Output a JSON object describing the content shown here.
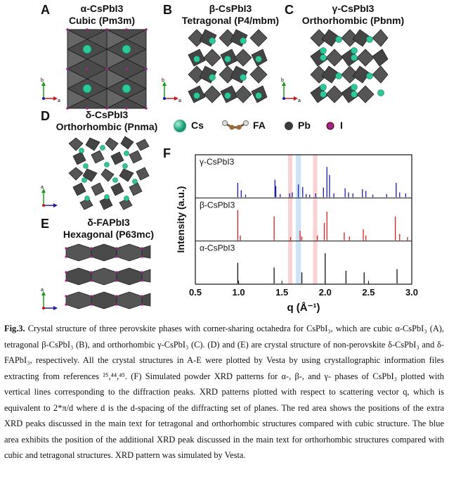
{
  "panels": {
    "A": {
      "letter": "A",
      "formula": "α-CsPbI3",
      "phase": "Cubic (Pm3m)"
    },
    "B": {
      "letter": "B",
      "formula": "β-CsPbI3",
      "phase": "Tetragonal (P4/mbm)"
    },
    "C": {
      "letter": "C",
      "formula": "γ-CsPbI3",
      "phase": "Orthorhombic (Pbnm)"
    },
    "D": {
      "letter": "D",
      "formula": "δ-CsPbI3",
      "phase": "Orthorhombic (Pnma)"
    },
    "E": {
      "letter": "E",
      "formula": "δ-FAPbI3",
      "phase": "Hexagonal (P63mc)"
    },
    "F": {
      "letter": "F"
    }
  },
  "legend": [
    {
      "label": "Cs",
      "color": "#2ec79a",
      "icon": "cs-atom-icon"
    },
    {
      "label": "FA",
      "color": "#9a6a3a",
      "icon": "fa-molecule-icon"
    },
    {
      "label": "Pb",
      "color": "#3a3a3a",
      "icon": "pb-atom-icon"
    },
    {
      "label": "I",
      "color": "#a0228c",
      "icon": "i-atom-icon"
    }
  ],
  "axis_labels": {
    "b": "b",
    "a": "a"
  },
  "chart_data": {
    "type": "bar",
    "xlabel": "q (Å⁻¹)",
    "ylabel": "Intensity (a.u.)",
    "xlim": [
      0.5,
      3.0
    ],
    "xticks": [
      "0.5",
      "1.0",
      "1.5",
      "2.0",
      "2.5",
      "3.0"
    ],
    "red_bands": [
      [
        1.57,
        1.62
      ],
      [
        1.86,
        1.91
      ]
    ],
    "blue_band": [
      1.66,
      1.72
    ],
    "series": [
      {
        "name": "γ-CsPbI3",
        "color": "#1a1aa6",
        "peaks": [
          [
            0.99,
            0.45
          ],
          [
            1.03,
            0.22
          ],
          [
            1.08,
            0.08
          ],
          [
            1.42,
            0.55
          ],
          [
            1.43,
            0.35
          ],
          [
            1.48,
            0.1
          ],
          [
            1.59,
            0.12
          ],
          [
            1.62,
            0.15
          ],
          [
            1.69,
            0.4
          ],
          [
            1.74,
            0.32
          ],
          [
            1.78,
            0.1
          ],
          [
            1.82,
            0.08
          ],
          [
            1.89,
            0.12
          ],
          [
            1.98,
            0.3
          ],
          [
            2.02,
            0.95
          ],
          [
            2.05,
            0.7
          ],
          [
            2.1,
            0.12
          ],
          [
            2.23,
            0.28
          ],
          [
            2.27,
            0.15
          ],
          [
            2.32,
            0.12
          ],
          [
            2.43,
            0.25
          ],
          [
            2.47,
            0.2
          ],
          [
            2.55,
            0.08
          ],
          [
            2.71,
            0.1
          ],
          [
            2.82,
            0.45
          ],
          [
            2.86,
            0.15
          ],
          [
            2.93,
            0.12
          ]
        ]
      },
      {
        "name": "β-CsPbI3",
        "color": "#d42020",
        "peaks": [
          [
            0.99,
            0.95
          ],
          [
            1.02,
            0.15
          ],
          [
            1.41,
            0.75
          ],
          [
            1.6,
            0.1
          ],
          [
            1.71,
            0.3
          ],
          [
            1.73,
            0.12
          ],
          [
            1.91,
            0.15
          ],
          [
            1.99,
            0.55
          ],
          [
            2.02,
            0.9
          ],
          [
            2.22,
            0.25
          ],
          [
            2.28,
            0.12
          ],
          [
            2.44,
            0.35
          ],
          [
            2.47,
            0.15
          ],
          [
            2.81,
            0.75
          ],
          [
            2.86,
            0.2
          ],
          [
            2.95,
            0.1
          ]
        ]
      },
      {
        "name": "α-CsPbI3",
        "color": "#111111",
        "peaks": [
          [
            0.99,
            0.65
          ],
          [
            1.41,
            0.5
          ],
          [
            1.73,
            0.35
          ],
          [
            2.0,
            0.95
          ],
          [
            2.24,
            0.4
          ],
          [
            2.45,
            0.35
          ],
          [
            2.83,
            0.45
          ]
        ]
      }
    ]
  },
  "caption": {
    "label": "Fig.3.",
    "text": " Crystal structure of three perovskite phases with corner-sharing octahedra for CsPbI₃, which are cubic α-CsPbI₃ (A), tetragonal β-CsPbI₃ (B), and orthorhombic γ-CsPbI₃ (C). (D) and (E) are crystal structure of non-perovskite δ-CsPbI₃ and δ-FAPbI₃, respectively. All the crystal structures in A-E were plotted by Vesta by using crystallographic information files extracting from references ²⁵,⁴⁴,⁴⁵. (F) Simulated powder XRD patterns for α-, β-, and γ- phases of CsPbI₃ plotted with vertical lines corresponding to the diffraction peaks. XRD patterns plotted with respect to scattering vector q, which is equivalent to 2*π/d where d is the d-spacing of the diffracting set of planes. The red area shows the positions of the extra XRD peaks discussed in the main text for tetragonal and orthorhombic structures compared with cubic structure. The blue area exhibits the position of the additional XRD peak discussed in the main text for orthorhombic structures compared with cubic and tetragonal structures. XRD pattern was simulated by Vesta."
  }
}
